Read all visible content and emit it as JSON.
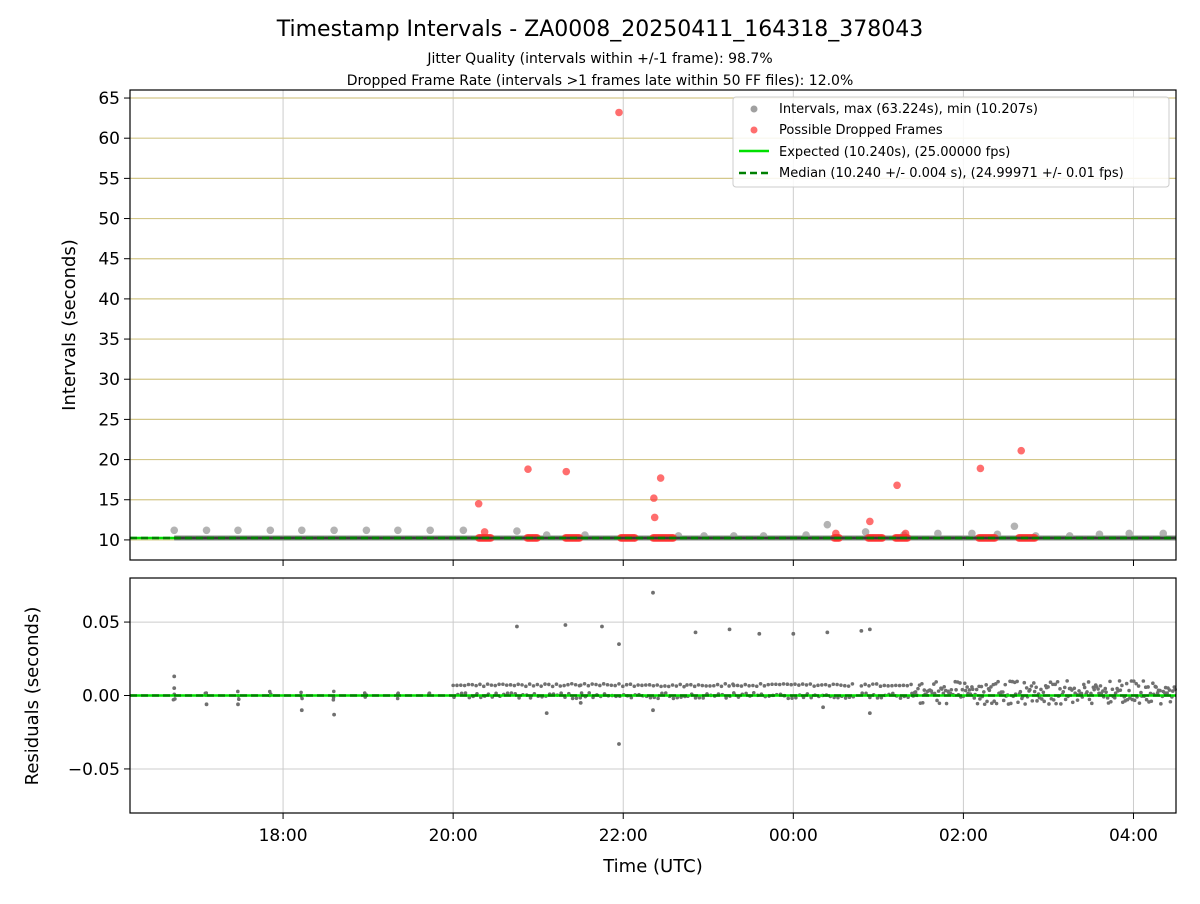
{
  "figure": {
    "title": "Timestamp Intervals - ZA0008_20250411_164318_378043",
    "subtitle1": "Jitter Quality (intervals within +/-1 frame): 98.7%",
    "subtitle2": "Dropped Frame Rate (intervals >1 frames late within 50 FF files): 12.0%"
  },
  "colors": {
    "intervals": "#a0a0a0",
    "dropped": "#ff3030",
    "expected": "#00e000",
    "median": "#008000",
    "grid_top": "#d4c88a",
    "grid": "#cccccc",
    "residuals": "#707070",
    "dark_line": "#3a3a3a"
  },
  "chart_data": [
    {
      "type": "scatter",
      "panel": "intervals",
      "xlabel": "",
      "ylabel": "Intervals (seconds)",
      "x_unit": "hours since 00:00 UTC of first day",
      "xlim": [
        16.2,
        28.5
      ],
      "ylim": [
        7.5,
        66
      ],
      "yticks": [
        10,
        15,
        20,
        25,
        30,
        35,
        40,
        45,
        50,
        55,
        60,
        65
      ],
      "grid": "horizontal",
      "legend_position": "top-right",
      "legend": [
        "Intervals, max (63.224s), min (10.207s)",
        "Possible Dropped Frames",
        "Expected (10.240s), (25.00000 fps)",
        "Median (10.240 +/- 0.004 s), (24.99971 +/- 0.01 fps)"
      ],
      "expected_interval": 10.24,
      "median_interval": 10.24,
      "series": [
        {
          "name": "Intervals, max (63.224s), min (10.207s)",
          "points": [
            [
              16.72,
              11.2
            ],
            [
              17.1,
              11.2
            ],
            [
              17.47,
              11.2
            ],
            [
              17.85,
              11.2
            ],
            [
              18.22,
              11.2
            ],
            [
              18.6,
              11.2
            ],
            [
              18.98,
              11.2
            ],
            [
              19.35,
              11.2
            ],
            [
              19.73,
              11.2
            ],
            [
              20.12,
              11.2
            ],
            [
              20.75,
              11.1
            ],
            [
              21.1,
              10.6
            ],
            [
              21.55,
              10.6
            ],
            [
              22.65,
              10.5
            ],
            [
              22.95,
              10.5
            ],
            [
              23.3,
              10.5
            ],
            [
              23.65,
              10.5
            ],
            [
              24.15,
              10.6
            ],
            [
              24.4,
              11.9
            ],
            [
              24.85,
              11.0
            ],
            [
              25.3,
              10.6
            ],
            [
              25.7,
              10.8
            ],
            [
              26.1,
              10.8
            ],
            [
              26.4,
              10.7
            ],
            [
              26.6,
              11.7
            ],
            [
              26.85,
              10.5
            ],
            [
              27.25,
              10.5
            ],
            [
              27.6,
              10.7
            ],
            [
              27.95,
              10.8
            ],
            [
              28.35,
              10.8
            ]
          ]
        },
        {
          "name": "Possible Dropped Frames",
          "points": [
            [
              20.3,
              14.5
            ],
            [
              20.37,
              11.0
            ],
            [
              20.88,
              18.8
            ],
            [
              21.33,
              18.5
            ],
            [
              21.95,
              63.2
            ],
            [
              22.36,
              15.2
            ],
            [
              22.37,
              12.8
            ],
            [
              22.44,
              17.7
            ],
            [
              24.5,
              10.8
            ],
            [
              24.9,
              12.3
            ],
            [
              25.22,
              16.8
            ],
            [
              25.32,
              10.8
            ],
            [
              26.2,
              18.9
            ],
            [
              26.68,
              21.1
            ]
          ],
          "clusters": [
            [
              20.3,
              20.45
            ],
            [
              20.87,
              21.0
            ],
            [
              21.32,
              21.5
            ],
            [
              21.97,
              22.15
            ],
            [
              22.35,
              22.6
            ],
            [
              24.48,
              24.55
            ],
            [
              24.88,
              25.05
            ],
            [
              25.2,
              25.35
            ],
            [
              26.18,
              26.38
            ],
            [
              26.65,
              26.85
            ]
          ],
          "cluster_value": 10.24
        }
      ]
    },
    {
      "type": "scatter",
      "panel": "residuals",
      "xlabel": "Time (UTC)",
      "ylabel": "Residuals (seconds)",
      "xlim": [
        16.2,
        28.5
      ],
      "ylim": [
        -0.08,
        0.08
      ],
      "yticks": [
        0.05,
        0.0,
        -0.05
      ],
      "ytick_labels": [
        "0.05",
        "0.00",
        "−0.05"
      ],
      "xticks": [
        18,
        20,
        22,
        24,
        26,
        28
      ],
      "xtick_labels": [
        "18:00",
        "20:00",
        "22:00",
        "00:00",
        "02:00",
        "04:00"
      ],
      "grid": "both",
      "series": [
        {
          "name": "Residuals",
          "outliers": [
            [
              16.72,
              0.013
            ],
            [
              16.72,
              0.005
            ],
            [
              17.1,
              -0.006
            ],
            [
              17.47,
              -0.006
            ],
            [
              18.22,
              -0.01
            ],
            [
              18.6,
              -0.013
            ],
            [
              20.75,
              0.047
            ],
            [
              21.1,
              -0.012
            ],
            [
              21.32,
              0.048
            ],
            [
              21.75,
              0.047
            ],
            [
              21.95,
              0.035
            ],
            [
              21.95,
              -0.033
            ],
            [
              22.35,
              0.07
            ],
            [
              22.85,
              0.043
            ],
            [
              23.25,
              0.045
            ],
            [
              23.6,
              0.042
            ],
            [
              24.0,
              0.042
            ],
            [
              24.4,
              0.043
            ],
            [
              24.8,
              0.044
            ],
            [
              24.9,
              0.045
            ],
            [
              22.35,
              -0.01
            ],
            [
              21.5,
              -0.005
            ],
            [
              24.35,
              -0.008
            ],
            [
              24.9,
              -0.012
            ]
          ],
          "bands": [
            {
              "x": [
                20.0,
                21.5
              ],
              "level": 0.007
            },
            {
              "x": [
                21.5,
                22.75
              ],
              "level": 0.007
            },
            {
              "x": [
                22.75,
                23.3
              ],
              "level": 0.007
            },
            {
              "x": [
                23.3,
                24.2
              ],
              "level": 0.007
            },
            {
              "x": [
                24.2,
                24.7
              ],
              "level": 0.007
            },
            {
              "x": [
                24.8,
                25.4
              ],
              "level": 0.007
            },
            {
              "x": [
                25.4,
                28.5
              ],
              "level": 0.004
            }
          ]
        }
      ]
    }
  ]
}
